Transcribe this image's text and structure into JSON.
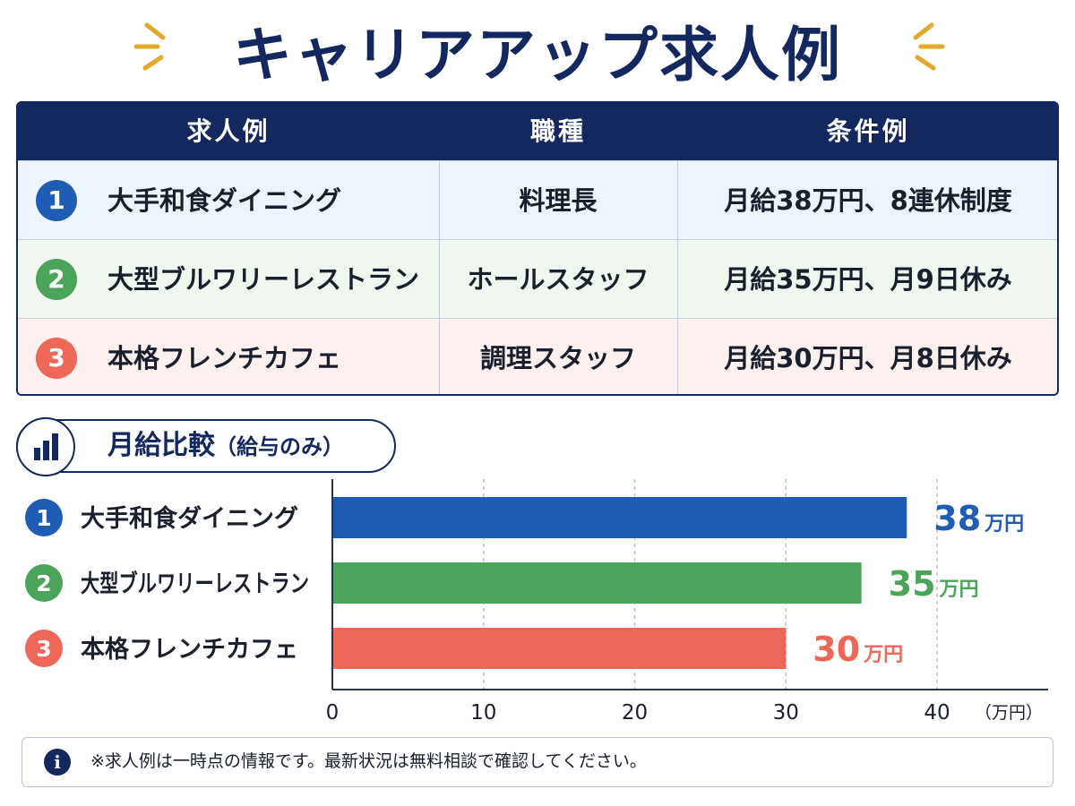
{
  "title": "キャリアアップ求人例",
  "colors": {
    "navy": "#13285e",
    "blue": "#1f5cb4",
    "green": "#4ca45a",
    "red": "#ee6759"
  },
  "table": {
    "headers": [
      "求人例",
      "職種",
      "条件例"
    ],
    "rows": [
      {
        "num": "1",
        "name": "大手和食ダイニング",
        "role": "料理長",
        "conditions": "月給38万円、8連休制度",
        "color": "#1f5cb4"
      },
      {
        "num": "2",
        "name": "大型ブルワリーレストラン",
        "role": "ホールスタッフ",
        "conditions": "月給35万円、月9日休み",
        "color": "#4ca45a"
      },
      {
        "num": "3",
        "name": "本格フレンチカフェ",
        "role": "調理スタッフ",
        "conditions": "月給30万円、月8日休み",
        "color": "#ee6759"
      }
    ]
  },
  "chart_header": {
    "title": "月給比較",
    "subtitle": "（給与のみ）"
  },
  "chart_data": {
    "type": "bar",
    "orientation": "horizontal",
    "categories": [
      "大手和食ダイニング",
      "大型ブルワリーレストラン",
      "本格フレンチカフェ"
    ],
    "category_numbers": [
      "1",
      "2",
      "3"
    ],
    "values": [
      38,
      35,
      30
    ],
    "value_unit": "万円",
    "colors": [
      "#1f5cb4",
      "#4ca45a",
      "#ee6759"
    ],
    "xlim": [
      0,
      40
    ],
    "xticks": [
      0,
      10,
      20,
      30,
      40
    ],
    "xlabel": "（万円）",
    "grid": "vertical dashed"
  },
  "note": {
    "icon": "info-icon",
    "text": "※求人例は一時点の情報です。最新状況は無料相談で確認してください。"
  }
}
